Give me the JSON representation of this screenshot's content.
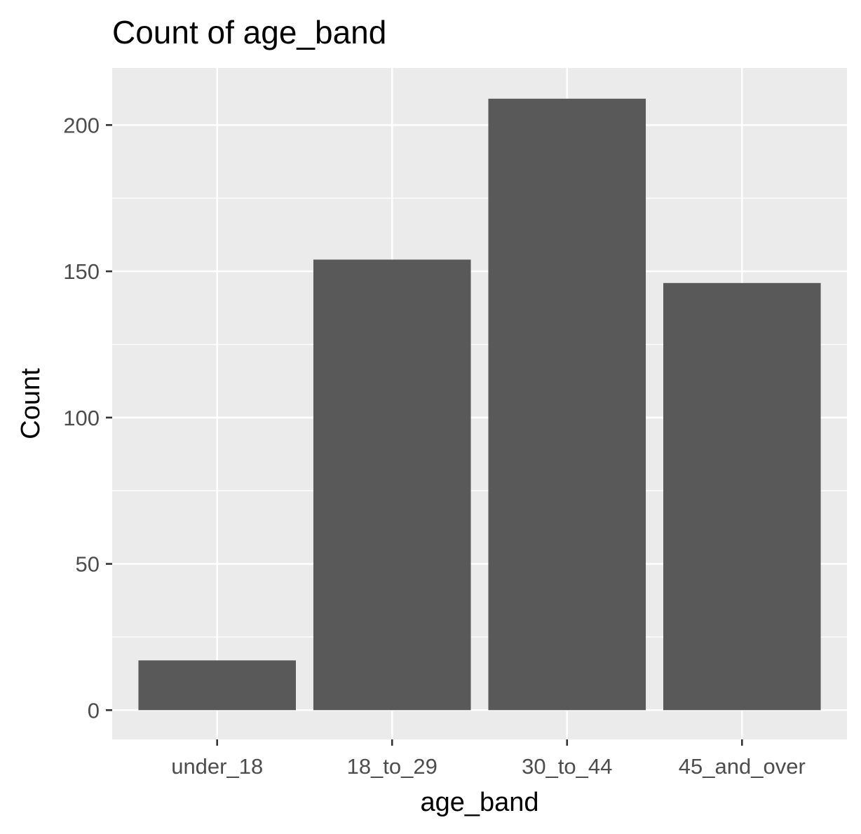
{
  "chart_data": {
    "type": "bar",
    "title": "Count of age_band",
    "xlabel": "age_band",
    "ylabel": "Count",
    "categories": [
      "under_18",
      "18_to_29",
      "30_to_44",
      "45_and_over"
    ],
    "values": [
      17,
      154,
      209,
      146
    ],
    "ylim": [
      -10,
      219.5
    ],
    "yticks": [
      0,
      50,
      100,
      150,
      200
    ],
    "ytick_labels": [
      "0",
      "50",
      "100",
      "150",
      "200"
    ],
    "grid": true,
    "colors": {
      "bar": "#595959",
      "panel": "#ebebeb",
      "grid": "#ffffff",
      "tick": "#333333"
    }
  }
}
